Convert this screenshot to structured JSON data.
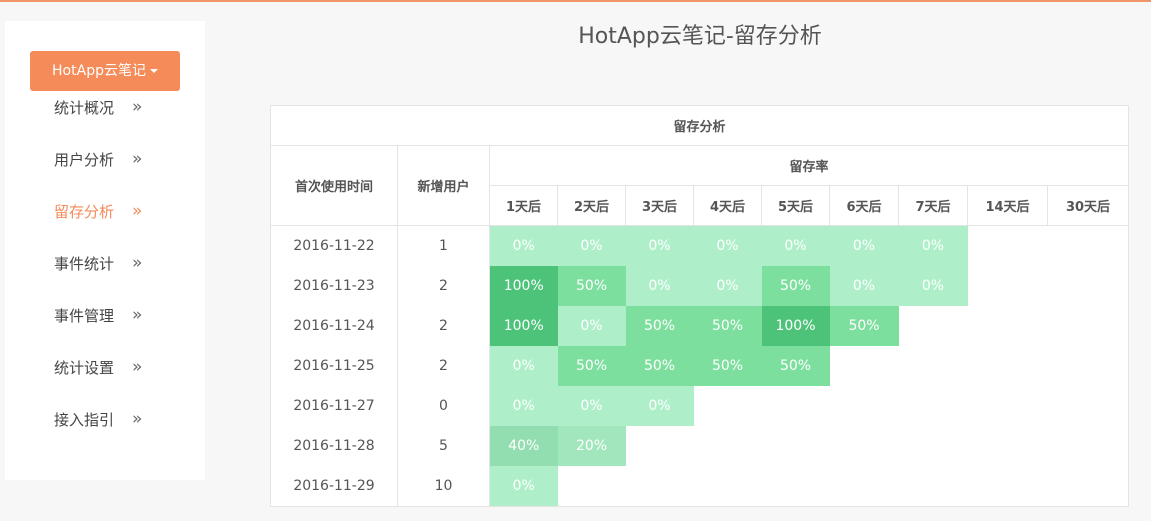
{
  "sidebar": {
    "app_button": "HotApp云笔记",
    "items": [
      {
        "label": "统计概况",
        "active": false
      },
      {
        "label": "用户分析",
        "active": false
      },
      {
        "label": "留存分析",
        "active": true
      },
      {
        "label": "事件统计",
        "active": false
      },
      {
        "label": "事件管理",
        "active": false
      },
      {
        "label": "统计设置",
        "active": false
      },
      {
        "label": "接入指引",
        "active": false
      }
    ]
  },
  "page": {
    "title": "HotApp云笔记-留存分析"
  },
  "table": {
    "caption": "留存分析",
    "col_date": "首次使用时间",
    "col_users": "新增用户",
    "col_rate": "留存率",
    "days": [
      "1天后",
      "2天后",
      "3天后",
      "4天后",
      "5天后",
      "6天后",
      "7天后",
      "14天后",
      "30天后"
    ],
    "rows": [
      {
        "date": "2016-11-22",
        "users": "1",
        "rates": [
          "0%",
          "0%",
          "0%",
          "0%",
          "0%",
          "0%",
          "0%"
        ]
      },
      {
        "date": "2016-11-23",
        "users": "2",
        "rates": [
          "100%",
          "50%",
          "0%",
          "0%",
          "50%",
          "0%",
          "0%"
        ]
      },
      {
        "date": "2016-11-24",
        "users": "2",
        "rates": [
          "100%",
          "0%",
          "50%",
          "50%",
          "100%",
          "50%"
        ]
      },
      {
        "date": "2016-11-25",
        "users": "2",
        "rates": [
          "0%",
          "50%",
          "50%",
          "50%",
          "50%"
        ]
      },
      {
        "date": "2016-11-27",
        "users": "0",
        "rates": [
          "0%",
          "0%",
          "0%"
        ]
      },
      {
        "date": "2016-11-28",
        "users": "5",
        "rates": [
          "40%",
          "20%"
        ]
      },
      {
        "date": "2016-11-29",
        "users": "10",
        "rates": [
          "0%"
        ]
      }
    ],
    "colors": {
      "0": "#aeefca",
      "20": "#a2e6bd",
      "40": "#93deb0",
      "50": "#7ddf9e",
      "100": "#4dc37a"
    }
  }
}
